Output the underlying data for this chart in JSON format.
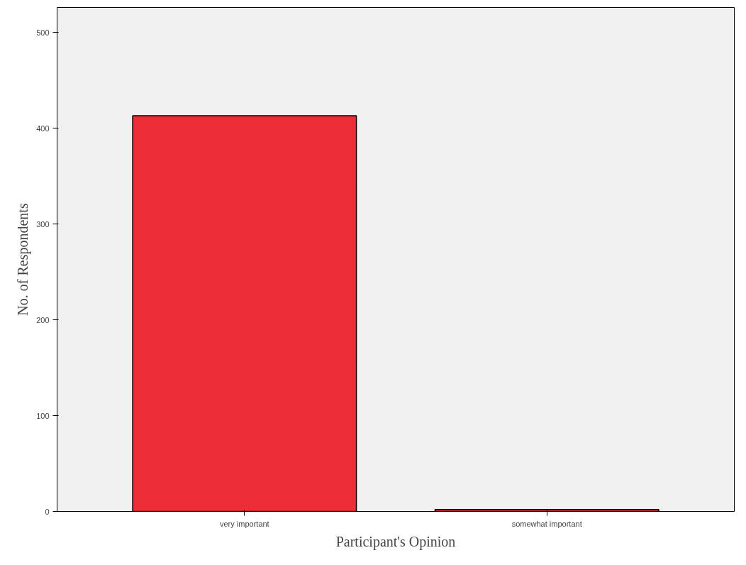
{
  "chart_data": {
    "type": "bar",
    "xlabel": "Participant's Opinion",
    "ylabel": "No. of Respondents",
    "categories": [
      "very important",
      "somewhat important"
    ],
    "values": [
      413,
      2
    ],
    "color": "#ee2e36",
    "ylim": [
      0,
      526
    ],
    "yticks": [
      0,
      100,
      200,
      300,
      400,
      500
    ],
    "grid": false
  }
}
